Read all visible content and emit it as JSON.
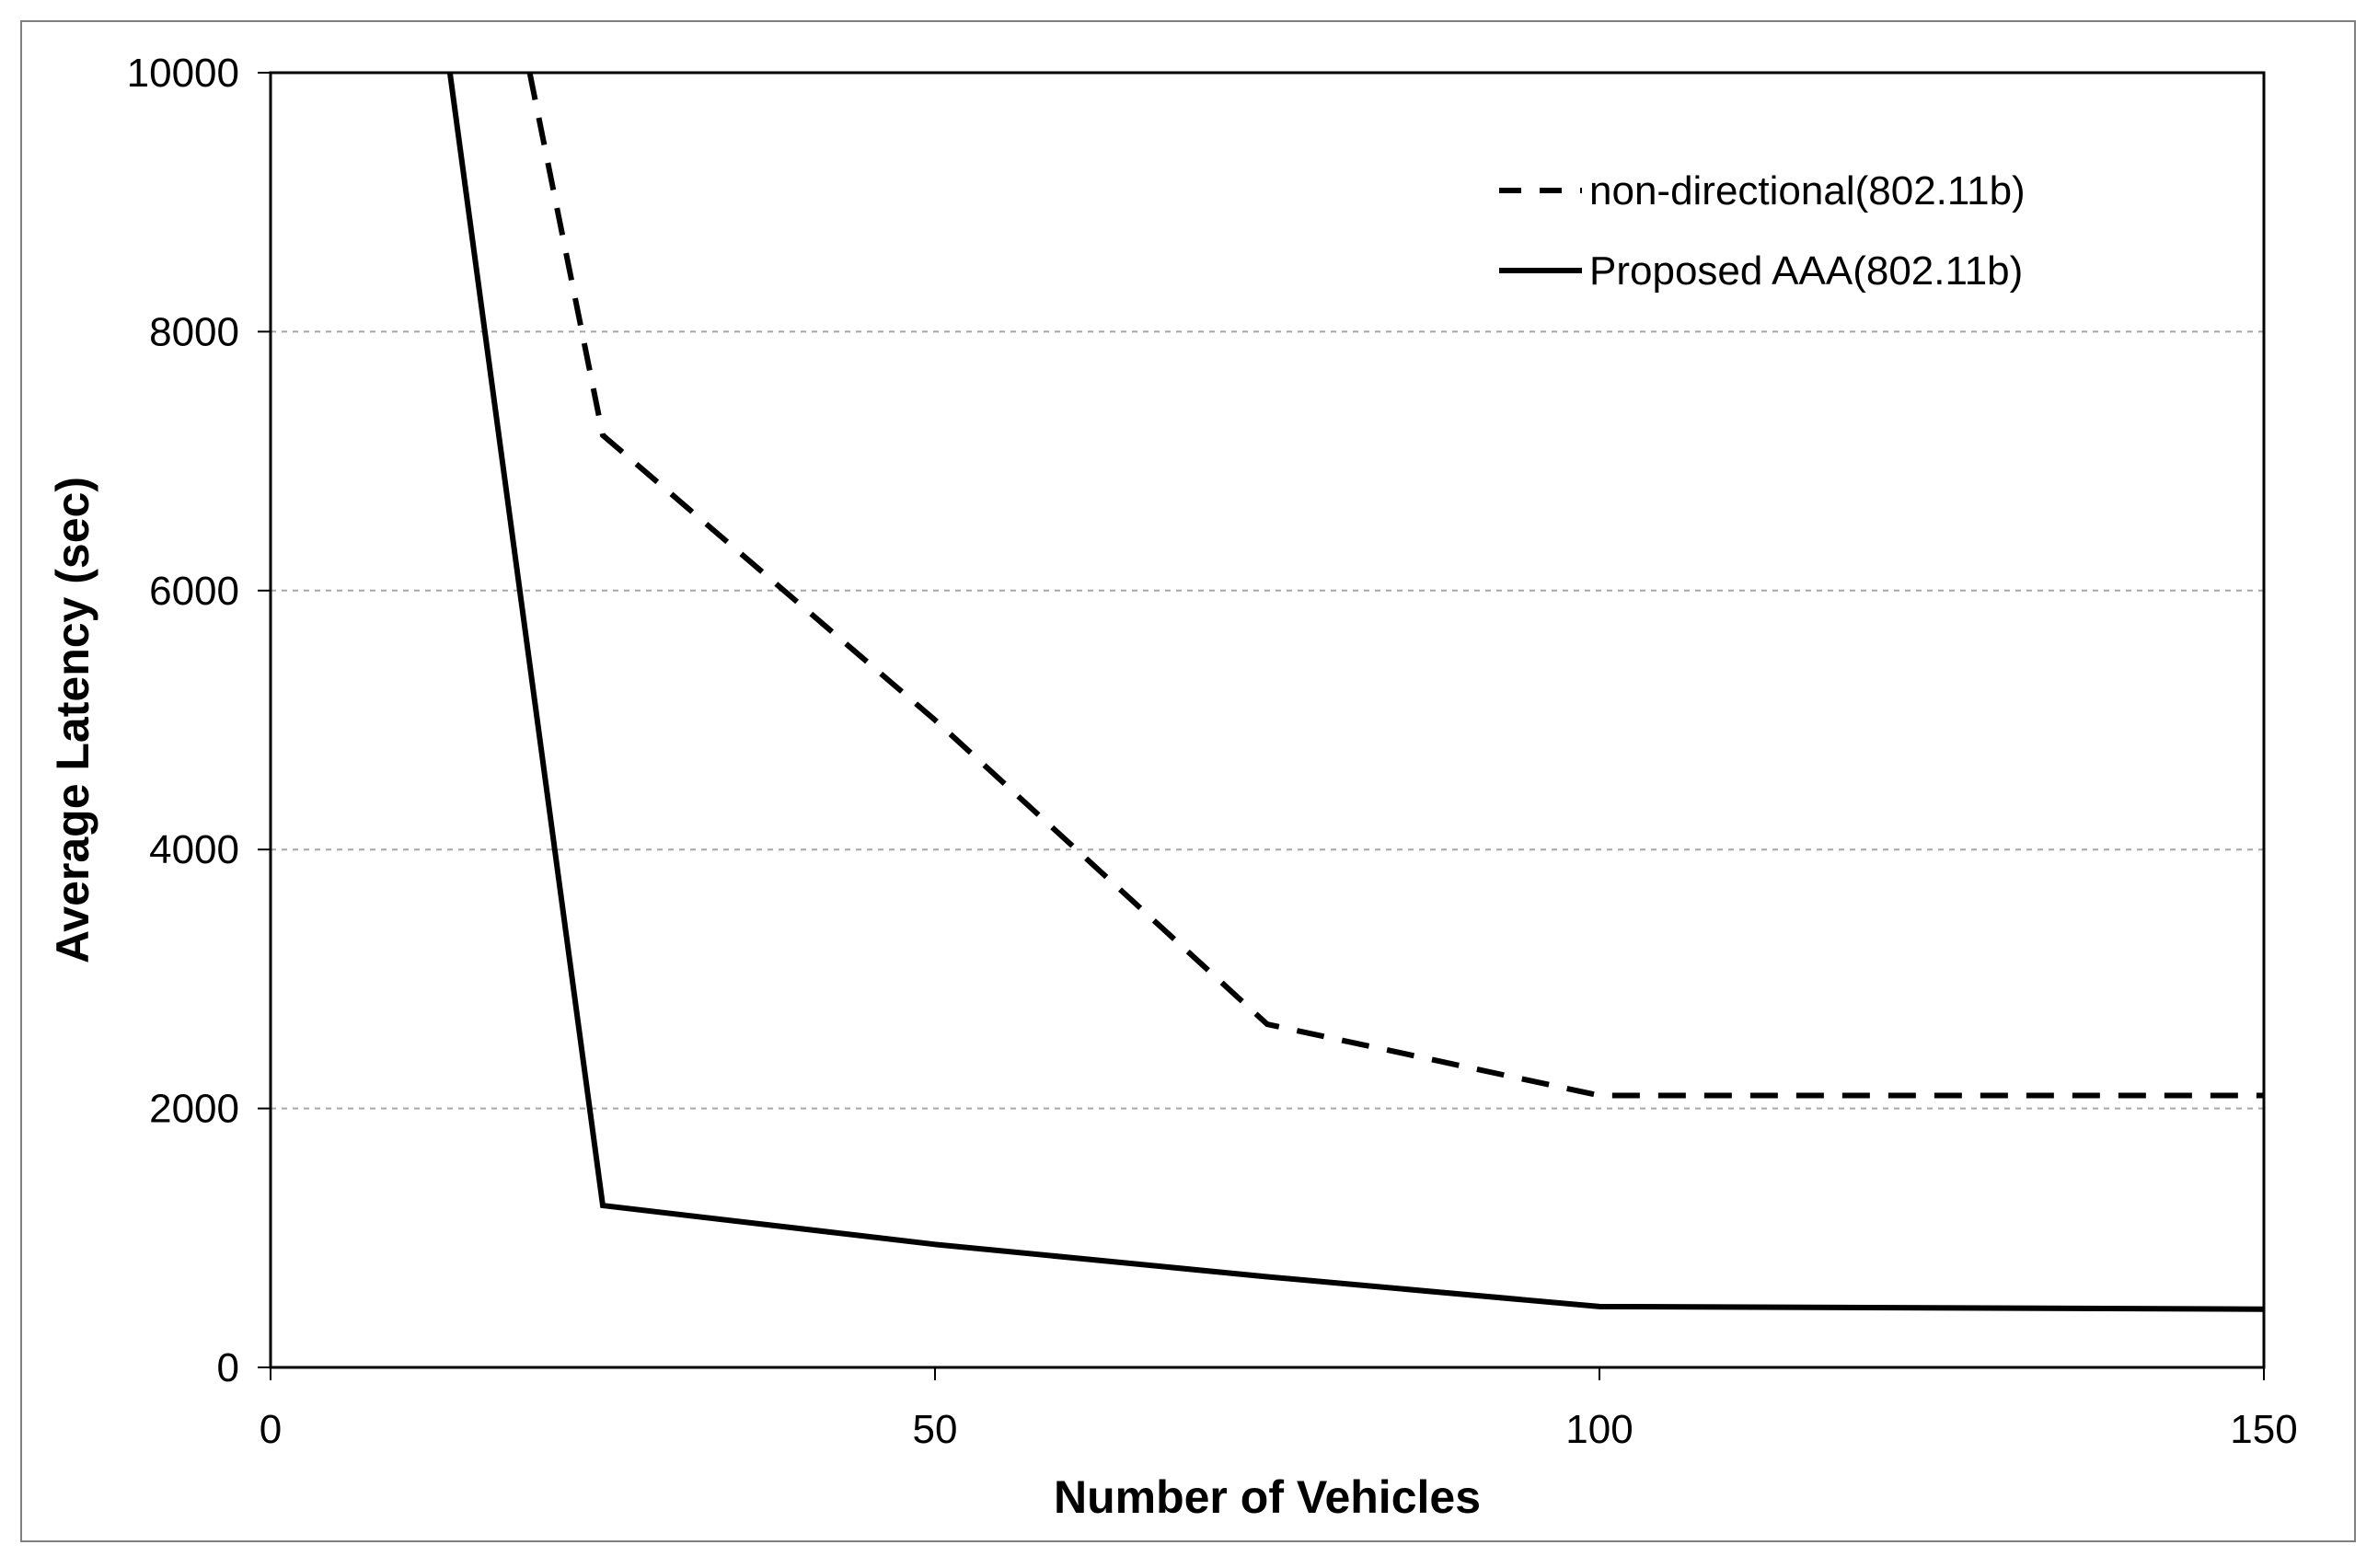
{
  "chart_data": {
    "type": "line",
    "title": "",
    "xlabel": "Number of Vehicles",
    "ylabel": "Average Latency (sec)",
    "xlim": [
      0,
      150
    ],
    "ylim": [
      0,
      10000
    ],
    "xticks": [
      0,
      50,
      100,
      150
    ],
    "yticks": [
      0,
      2000,
      4000,
      6000,
      8000,
      10000
    ],
    "grid": "horizontal-dashed",
    "legend_position": "top-right",
    "series": [
      {
        "name": "non-directional(802.11b)",
        "style": "dashed",
        "color": "#000000",
        "x": [
          19.5,
          25,
          50,
          75,
          100,
          150
        ],
        "y": [
          10000,
          7200,
          5000,
          2650,
          2100,
          2100
        ]
      },
      {
        "name": "Proposed AAA(802.11b)",
        "style": "solid",
        "color": "#000000",
        "x": [
          13.5,
          25,
          50,
          75,
          100,
          150
        ],
        "y": [
          10000,
          1250,
          950,
          700,
          470,
          450
        ]
      }
    ]
  }
}
